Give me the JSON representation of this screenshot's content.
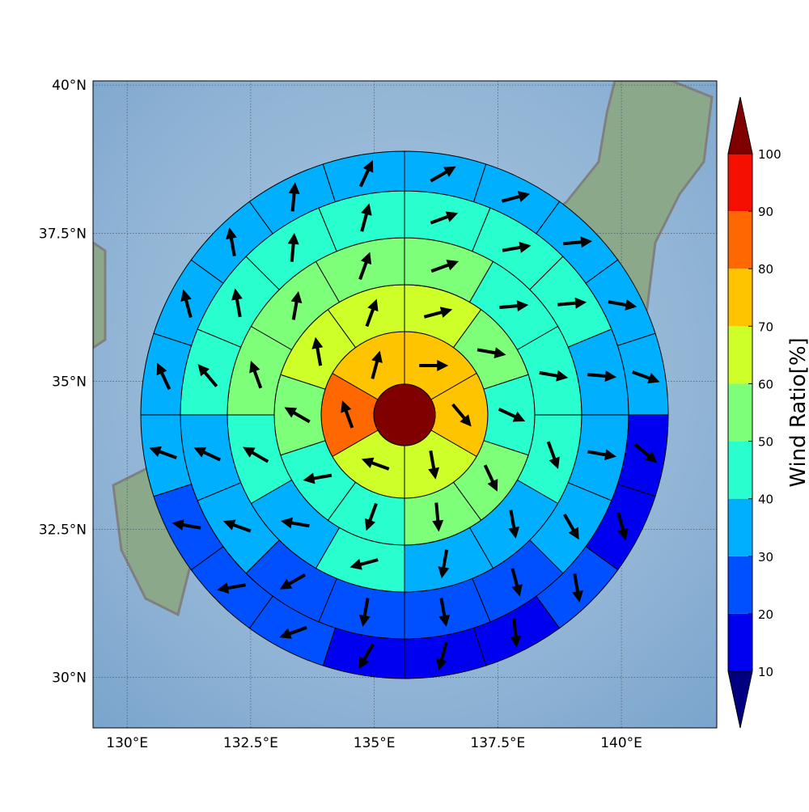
{
  "chart_data": {
    "type": "polar-sectors",
    "xlim": [
      129.31,
      141.93
    ],
    "ylim": [
      29.15,
      40.07
    ],
    "xticks": [
      {
        "value": 130,
        "label": "130°E"
      },
      {
        "value": 132.5,
        "label": "132.5°E"
      },
      {
        "value": 135,
        "label": "135°E"
      },
      {
        "value": 137.5,
        "label": "137.5°E"
      },
      {
        "value": 140,
        "label": "140°E"
      }
    ],
    "yticks": [
      {
        "value": 30,
        "label": "30°N"
      },
      {
        "value": 32.5,
        "label": "32.5°N"
      },
      {
        "value": 35,
        "label": "35°N"
      },
      {
        "value": 37.5,
        "label": "37.5°N"
      },
      {
        "value": 40,
        "label": "40°N"
      }
    ],
    "grid": true,
    "center_value": 100,
    "rings": [
      {
        "values": [
          75,
          75,
          65,
          65,
          85,
          75
        ],
        "directions": [
          90,
          140,
          170,
          290,
          340,
          15
        ]
      },
      {
        "values": [
          65,
          55,
          45,
          55,
          55,
          45,
          45,
          55,
          65,
          65
        ],
        "directions": [
          75,
          100,
          115,
          155,
          175,
          200,
          260,
          300,
          350,
          20
        ]
      },
      {
        "values": [
          55,
          45,
          45,
          45,
          35,
          35,
          45,
          35,
          45,
          55,
          55,
          55
        ],
        "directions": [
          70,
          85,
          100,
          160,
          170,
          190,
          255,
          280,
          300,
          340,
          10,
          20
        ]
      },
      {
        "values": [
          45,
          45,
          45,
          35,
          35,
          35,
          25,
          25,
          25,
          25,
          35,
          35,
          45,
          45,
          45,
          45
        ],
        "directions": [
          70,
          80,
          85,
          95,
          100,
          150,
          165,
          170,
          190,
          240,
          290,
          295,
          320,
          350,
          5,
          15
        ]
      },
      {
        "values": [
          35,
          35,
          35,
          35,
          35,
          15,
          15,
          25,
          15,
          15,
          15,
          25,
          25,
          25,
          35,
          35,
          35,
          35,
          35,
          35
        ],
        "directions": [
          60,
          75,
          85,
          100,
          110,
          130,
          165,
          170,
          175,
          195,
          210,
          250,
          260,
          280,
          290,
          335,
          345,
          350,
          5,
          25
        ]
      }
    ],
    "arrow_color": "#000000",
    "colorbar": {
      "label": "Wind Ratio[%]",
      "levels": [
        10,
        20,
        30,
        40,
        50,
        60,
        70,
        80,
        90,
        100
      ],
      "colors": [
        "#0000f0",
        "#0050ff",
        "#00b0ff",
        "#29ffce",
        "#7dff7a",
        "#ceff29",
        "#ffc400",
        "#ff6800",
        "#f50f00"
      ],
      "under_color": "#000080",
      "over_color": "#800000"
    }
  }
}
